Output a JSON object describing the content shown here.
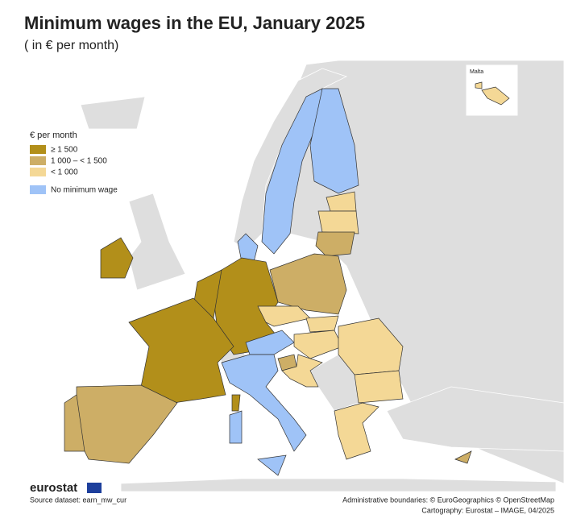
{
  "header": {
    "title": "Minimum wages in the EU, January 2025",
    "subtitle": "( in € per month)"
  },
  "legend": {
    "title": "€ per month",
    "items": [
      {
        "label": "≥ 1 500",
        "color": "#b28f1a"
      },
      {
        "label": "1 000 – < 1 500",
        "color": "#cdae66"
      },
      {
        "label": "< 1 000",
        "color": "#f4d896"
      },
      {
        "label": "No minimum wage",
        "color": "#9fc3f7"
      }
    ]
  },
  "inset": {
    "label": "Malta"
  },
  "footer": {
    "logo": "eurostat",
    "source": "Source dataset: earn_mw_cur",
    "boundaries": "Administrative boundaries: © EuroGeographics © OpenStreetMap",
    "cartography": "Cartography: Eurostat – IMAGE, 04/2025"
  }
}
